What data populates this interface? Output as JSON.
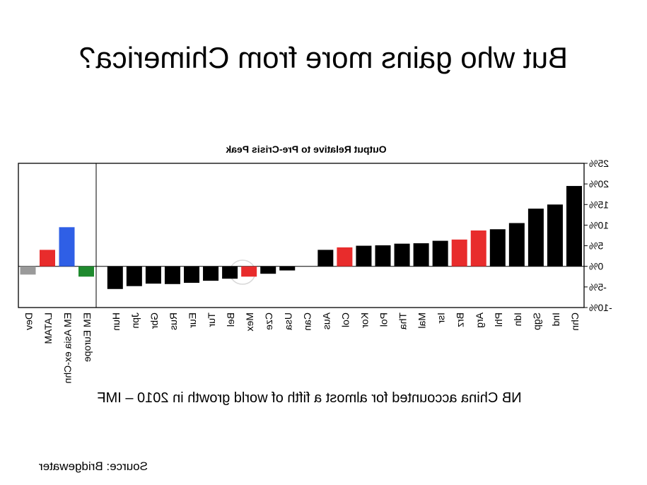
{
  "slide": {
    "title": "But who gains more from Chimerica?",
    "note": "NB China accounted for almost a fifth of world growth in 2010 – IMF",
    "source": "Source: Bridgewater"
  },
  "chart_data": {
    "type": "bar",
    "title": "Output Relative to Pre-Crisis Peak",
    "xlabel": "",
    "ylabel": "",
    "ylim": [
      -10,
      25
    ],
    "yticks": [
      "25%",
      "20%",
      "15%",
      "10%",
      "5%",
      "0%",
      "-5%",
      "-10%"
    ],
    "grid": false,
    "groups": [
      {
        "name": "aggregates",
        "categories": [
          "EM Europe",
          "EM Asia ex-Chn",
          "LATAM",
          "Dev"
        ],
        "values": [
          -2.5,
          9.5,
          4,
          -2
        ],
        "colors": [
          "#1f8a2e",
          "#2f5fe6",
          "#e82c2c",
          "#9a9a9a"
        ]
      },
      {
        "name": "countries",
        "categories": [
          "Chn",
          "Ind",
          "Sgp",
          "Idn",
          "Phl",
          "Arg",
          "Brz",
          "Isr",
          "Mal",
          "Tha",
          "Pol",
          "Kor",
          "Col",
          "Aus",
          "Can",
          "Usa",
          "Cze",
          "Mex",
          "Bel",
          "Tur",
          "Eur",
          "Rus",
          "Gbr",
          "Jpn",
          "Hun"
        ],
        "values": [
          19.5,
          15,
          14,
          10.5,
          9,
          8.7,
          6.5,
          6.2,
          5.6,
          5.5,
          5.1,
          5,
          4.6,
          4,
          0,
          -1,
          -1.8,
          -2.5,
          -3,
          -3.5,
          -4,
          -4.3,
          -4.2,
          -4.8,
          -5.5
        ],
        "colors": [
          "#000000",
          "#000000",
          "#000000",
          "#000000",
          "#000000",
          "#e82c2c",
          "#e82c2c",
          "#000000",
          "#000000",
          "#000000",
          "#000000",
          "#000000",
          "#e82c2c",
          "#000000",
          "#000000",
          "#000000",
          "#000000",
          "#e82c2c",
          "#000000",
          "#000000",
          "#000000",
          "#000000",
          "#000000",
          "#000000",
          "#000000"
        ]
      }
    ]
  }
}
